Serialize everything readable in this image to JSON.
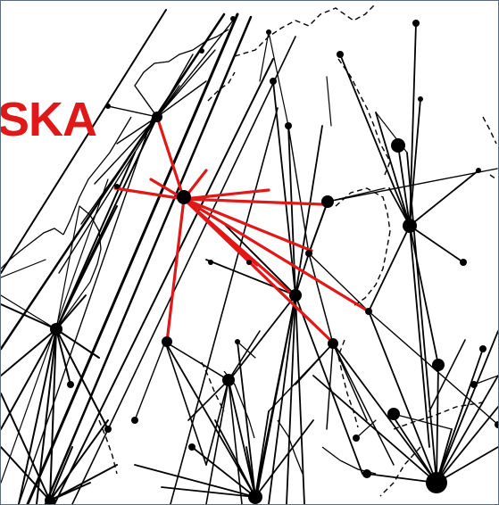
{
  "map": {
    "label": "SKA",
    "colors": {
      "background": "#ffffff",
      "network": "#000000",
      "highlight": "#e01818",
      "border": "#000000",
      "frame": "#5a6b7c"
    }
  }
}
